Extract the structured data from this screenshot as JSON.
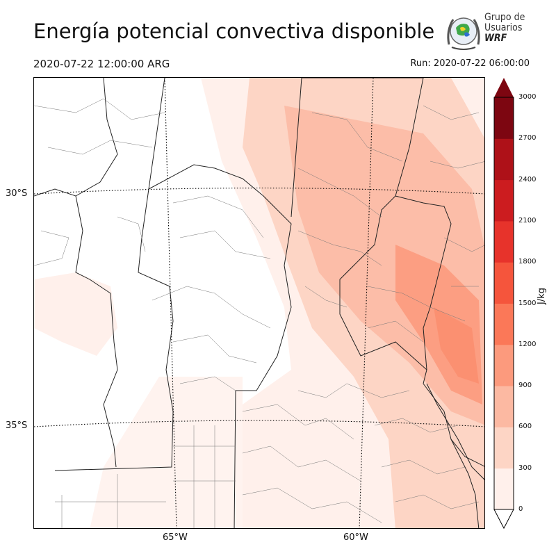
{
  "title": "Energía potencial convectiva disponible",
  "valid_time": "2020-07-22 12:00:00 ARG",
  "run_time": "Run: 2020-07-22 06:00:00",
  "logo": {
    "line1": "Grupo de",
    "line2": "Usuarios",
    "line3": "WRF"
  },
  "map": {
    "lat_labels": [
      "30°S",
      "35°S"
    ],
    "lon_labels": [
      "65°W",
      "60°W"
    ]
  },
  "colorbar": {
    "unit_label": "J/kg",
    "ticks": [
      "3000",
      "2700",
      "2400",
      "2100",
      "1800",
      "1500",
      "1200",
      "900",
      "600",
      "300",
      "0"
    ],
    "colors": [
      "#fff0eb",
      "#fdd5c5",
      "#fcb9a2",
      "#fc9a7d",
      "#fb7858",
      "#f5553c",
      "#e7332b",
      "#cc1c1f",
      "#ae1118",
      "#7d0611"
    ],
    "extend": "both"
  }
}
